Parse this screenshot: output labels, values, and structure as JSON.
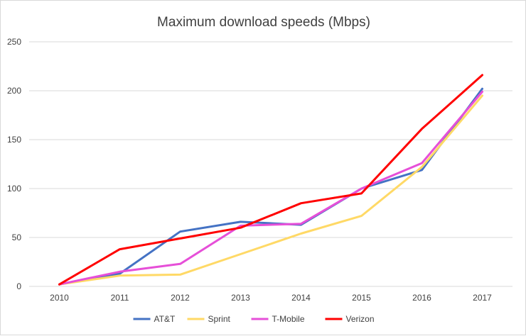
{
  "chart_data": {
    "type": "line",
    "title": "Maximum download speeds (Mbps)",
    "xlabel": "",
    "ylabel": "",
    "categories": [
      "2010",
      "2011",
      "2012",
      "2013",
      "2014",
      "2015",
      "2016",
      "2017"
    ],
    "ylim": [
      0,
      250
    ],
    "yticks": [
      0,
      50,
      100,
      150,
      200,
      250
    ],
    "grid": true,
    "legend_position": "bottom",
    "series": [
      {
        "name": "AT&T",
        "color": "#4472C4",
        "values": [
          2,
          13,
          56,
          66,
          63,
          100,
          119,
          202
        ]
      },
      {
        "name": "Sprint",
        "color": "#FFD966",
        "values": [
          2,
          11,
          12,
          33,
          54,
          72,
          122,
          195
        ]
      },
      {
        "name": "T-Mobile",
        "color": "#E64FD8",
        "values": [
          2,
          15,
          23,
          62,
          64,
          100,
          126,
          199
        ]
      },
      {
        "name": "Verizon",
        "color": "#FF0000",
        "values": [
          2,
          38,
          49,
          60,
          85,
          95,
          161,
          216
        ]
      }
    ]
  }
}
